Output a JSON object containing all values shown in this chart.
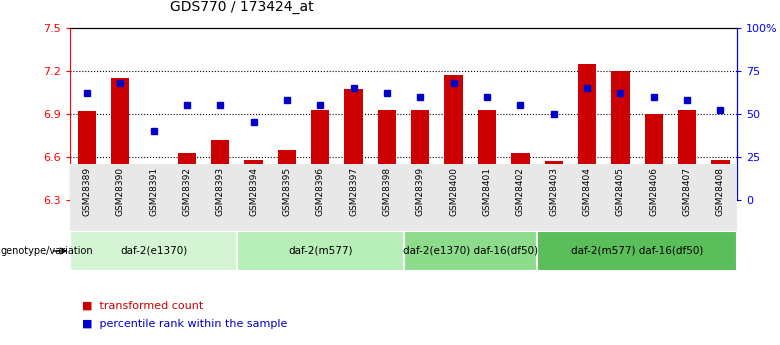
{
  "title": "GDS770 / 173424_at",
  "samples": [
    "GSM28389",
    "GSM28390",
    "GSM28391",
    "GSM28392",
    "GSM28393",
    "GSM28394",
    "GSM28395",
    "GSM28396",
    "GSM28397",
    "GSM28398",
    "GSM28399",
    "GSM28400",
    "GSM28401",
    "GSM28402",
    "GSM28403",
    "GSM28404",
    "GSM28405",
    "GSM28406",
    "GSM28407",
    "GSM28408"
  ],
  "bar_values": [
    6.92,
    7.15,
    6.53,
    6.63,
    6.72,
    6.58,
    6.65,
    6.93,
    7.07,
    6.93,
    6.93,
    7.17,
    6.93,
    6.63,
    6.57,
    7.25,
    7.2,
    6.9,
    6.93,
    6.58
  ],
  "percentile_values": [
    62,
    68,
    40,
    55,
    55,
    45,
    58,
    55,
    65,
    62,
    60,
    68,
    60,
    55,
    50,
    65,
    62,
    60,
    58,
    52
  ],
  "bar_color": "#CC0000",
  "percentile_color": "#0000CC",
  "ymin": 6.3,
  "ymax": 7.5,
  "yticks": [
    6.3,
    6.6,
    6.9,
    7.2,
    7.5
  ],
  "y2min": 0,
  "y2max": 100,
  "y2ticks": [
    0,
    25,
    50,
    75,
    100
  ],
  "y2ticklabels": [
    "0",
    "25",
    "50",
    "75",
    "100%"
  ],
  "group_labels": [
    "daf-2(e1370)",
    "daf-2(m577)",
    "daf-2(e1370) daf-16(df50)",
    "daf-2(m577) daf-16(df50)"
  ],
  "group_starts": [
    0,
    5,
    10,
    14
  ],
  "group_ends": [
    4,
    9,
    13,
    19
  ],
  "group_colors": [
    "#d4f4d4",
    "#b8eeb8",
    "#8cdc8c",
    "#5abf5a"
  ],
  "legend_labels": [
    "transformed count",
    "percentile rank within the sample"
  ],
  "legend_colors": [
    "#CC0000",
    "#0000CC"
  ],
  "background_color": "#ffffff"
}
